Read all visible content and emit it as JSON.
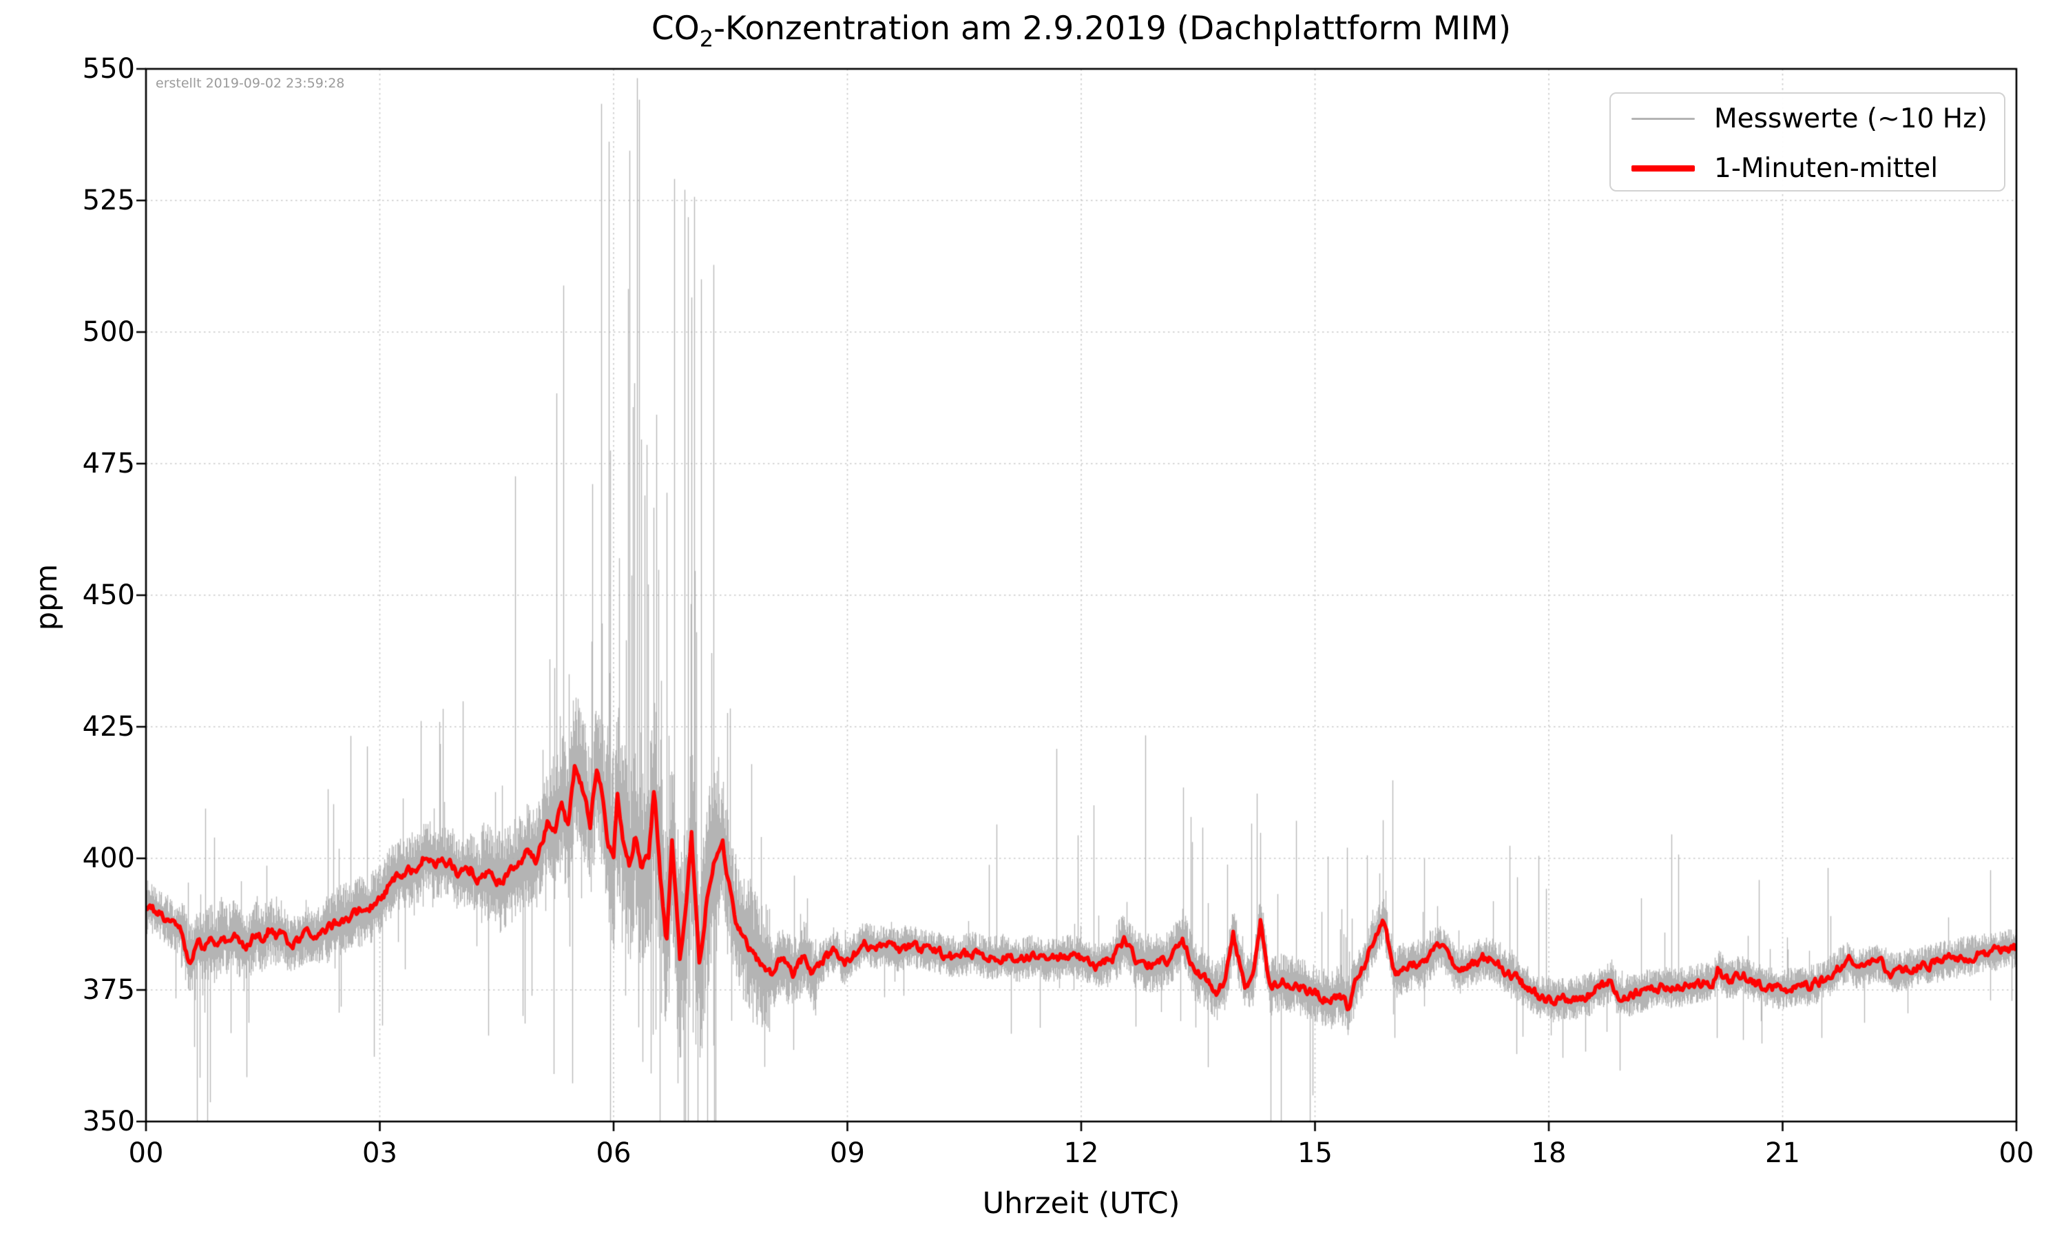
{
  "title": {
    "pre": "CO",
    "sub": "2",
    "post": "-Konzentration am 2.9.2019 (Dachplattform MIM)"
  },
  "created_stamp": "erstellt 2019-09-02 23:59:28",
  "colors": {
    "mean_line": "#ff0000",
    "raw_line": "#b4b4b4",
    "grid": "#c9c9c9",
    "spine": "#000000",
    "stamp": "#9b9b9b"
  },
  "legend": {
    "items": [
      {
        "label": "Messwerte (~10 Hz)",
        "color": "#b4b4b4",
        "thickness": 3
      },
      {
        "label": "1-Minuten-mittel",
        "color": "#ff0000",
        "thickness": 9
      }
    ]
  },
  "chart_data": {
    "type": "line",
    "xlabel": "Uhrzeit (UTC)",
    "ylabel": "ppm",
    "xlim": [
      0,
      24
    ],
    "ylim": [
      350,
      550
    ],
    "x_ticks": [
      0,
      3,
      6,
      9,
      12,
      15,
      18,
      21,
      24
    ],
    "x_tick_labels": [
      "00",
      "03",
      "06",
      "09",
      "12",
      "15",
      "18",
      "21",
      "00"
    ],
    "y_ticks": [
      350,
      375,
      400,
      425,
      450,
      475,
      500,
      525,
      550
    ],
    "y_tick_labels": [
      "350",
      "375",
      "400",
      "425",
      "450",
      "475",
      "500",
      "525",
      "550"
    ],
    "grid": "dotted",
    "legend_position": "upper right",
    "noise_seed": 20190902,
    "series": [
      {
        "name": "1-Minuten-mittel",
        "color": "#ff0000",
        "points": [
          [
            0.0,
            391.0
          ],
          [
            0.08,
            390.5
          ],
          [
            0.17,
            389.5
          ],
          [
            0.25,
            388.5
          ],
          [
            0.33,
            387.5
          ],
          [
            0.38,
            386.5
          ],
          [
            0.42,
            387.0
          ],
          [
            0.47,
            385.5
          ],
          [
            0.52,
            382.0
          ],
          [
            0.57,
            380.8
          ],
          [
            0.63,
            383.5
          ],
          [
            0.67,
            384.0
          ],
          [
            0.72,
            382.5
          ],
          [
            0.78,
            383.5
          ],
          [
            0.83,
            384.5
          ],
          [
            0.88,
            383.0
          ],
          [
            0.95,
            385.0
          ],
          [
            1.0,
            385.5
          ],
          [
            1.05,
            384.0
          ],
          [
            1.13,
            386.0
          ],
          [
            1.22,
            383.5
          ],
          [
            1.28,
            383.0
          ],
          [
            1.38,
            385.5
          ],
          [
            1.42,
            386.0
          ],
          [
            1.5,
            384.5
          ],
          [
            1.58,
            386.5
          ],
          [
            1.67,
            385.0
          ],
          [
            1.72,
            386.0
          ],
          [
            1.82,
            384.0
          ],
          [
            1.9,
            384.0
          ],
          [
            2.0,
            385.0
          ],
          [
            2.08,
            385.5
          ],
          [
            2.17,
            384.5
          ],
          [
            2.25,
            386.0
          ],
          [
            2.35,
            387.0
          ],
          [
            2.5,
            388.0
          ],
          [
            2.63,
            389.0
          ],
          [
            2.75,
            390.0
          ],
          [
            2.85,
            390.5
          ],
          [
            2.95,
            391.5
          ],
          [
            3.05,
            393.0
          ],
          [
            3.13,
            395.5
          ],
          [
            3.2,
            396.5
          ],
          [
            3.35,
            397.5
          ],
          [
            3.5,
            398.0
          ],
          [
            3.6,
            401.0
          ],
          [
            3.7,
            399.0
          ],
          [
            3.8,
            399.0
          ],
          [
            3.9,
            399.5
          ],
          [
            4.0,
            397.0
          ],
          [
            4.1,
            397.5
          ],
          [
            4.17,
            398.0
          ],
          [
            4.25,
            396.0
          ],
          [
            4.33,
            397.0
          ],
          [
            4.42,
            397.5
          ],
          [
            4.55,
            395.2
          ],
          [
            4.66,
            397.0
          ],
          [
            4.75,
            398.2
          ],
          [
            4.87,
            401.0
          ],
          [
            5.0,
            399.5
          ],
          [
            5.08,
            403.0
          ],
          [
            5.15,
            407.0
          ],
          [
            5.25,
            405.0
          ],
          [
            5.33,
            410.5
          ],
          [
            5.42,
            406.0
          ],
          [
            5.5,
            417.5
          ],
          [
            5.57,
            414.5
          ],
          [
            5.63,
            412.0
          ],
          [
            5.7,
            406.5
          ],
          [
            5.78,
            417.0
          ],
          [
            5.85,
            413.0
          ],
          [
            5.93,
            402.0
          ],
          [
            6.0,
            400.5
          ],
          [
            6.05,
            412.5
          ],
          [
            6.12,
            404.0
          ],
          [
            6.2,
            398.5
          ],
          [
            6.28,
            404.5
          ],
          [
            6.35,
            398.5
          ],
          [
            6.45,
            400.0
          ],
          [
            6.52,
            413.0
          ],
          [
            6.6,
            396.0
          ],
          [
            6.68,
            384.0
          ],
          [
            6.75,
            404.0
          ],
          [
            6.85,
            381.0
          ],
          [
            6.93,
            390.0
          ],
          [
            7.0,
            404.0
          ],
          [
            7.1,
            379.0
          ],
          [
            7.2,
            393.0
          ],
          [
            7.28,
            398.5
          ],
          [
            7.4,
            402.5
          ],
          [
            7.48,
            395.0
          ],
          [
            7.58,
            387.0
          ],
          [
            7.75,
            383.0
          ],
          [
            7.9,
            379.5
          ],
          [
            8.05,
            378.0
          ],
          [
            8.15,
            381.0
          ],
          [
            8.3,
            378.0
          ],
          [
            8.45,
            381.5
          ],
          [
            8.55,
            377.5
          ],
          [
            8.7,
            381.0
          ],
          [
            8.85,
            382.5
          ],
          [
            8.95,
            380.0
          ],
          [
            9.1,
            382.0
          ],
          [
            9.2,
            384.0
          ],
          [
            9.35,
            383.0
          ],
          [
            9.5,
            383.5
          ],
          [
            9.65,
            382.5
          ],
          [
            9.8,
            383.5
          ],
          [
            10.0,
            382.5
          ],
          [
            10.2,
            382.0
          ],
          [
            10.4,
            381.0
          ],
          [
            10.6,
            382.0
          ],
          [
            10.8,
            381.0
          ],
          [
            11.0,
            381.5
          ],
          [
            11.2,
            380.5
          ],
          [
            11.4,
            381.5
          ],
          [
            11.6,
            380.5
          ],
          [
            11.8,
            381.5
          ],
          [
            12.0,
            380.8
          ],
          [
            12.2,
            379.5
          ],
          [
            12.4,
            380.8
          ],
          [
            12.55,
            384.5
          ],
          [
            12.7,
            380.5
          ],
          [
            12.9,
            380.0
          ],
          [
            13.1,
            380.5
          ],
          [
            13.3,
            385.0
          ],
          [
            13.45,
            378.5
          ],
          [
            13.6,
            377.0
          ],
          [
            13.73,
            374.6
          ],
          [
            13.85,
            377.0
          ],
          [
            13.95,
            385.5
          ],
          [
            14.1,
            376.0
          ],
          [
            14.2,
            377.5
          ],
          [
            14.3,
            388.0
          ],
          [
            14.42,
            375.5
          ],
          [
            14.6,
            376.5
          ],
          [
            14.75,
            376.0
          ],
          [
            14.9,
            375.0
          ],
          [
            15.05,
            374.0
          ],
          [
            15.2,
            373.0
          ],
          [
            15.32,
            374.5
          ],
          [
            15.42,
            371.7
          ],
          [
            15.55,
            378.0
          ],
          [
            15.65,
            380.5
          ],
          [
            15.73,
            384.0
          ],
          [
            15.82,
            386.5
          ],
          [
            15.88,
            388.5
          ],
          [
            15.95,
            383.0
          ],
          [
            16.02,
            378.0
          ],
          [
            16.12,
            379.0
          ],
          [
            16.25,
            379.5
          ],
          [
            16.4,
            380.0
          ],
          [
            16.5,
            382.0
          ],
          [
            16.6,
            383.5
          ],
          [
            16.7,
            381.5
          ],
          [
            16.8,
            379.0
          ],
          [
            16.95,
            379.5
          ],
          [
            17.05,
            380.0
          ],
          [
            17.15,
            381.0
          ],
          [
            17.3,
            380.5
          ],
          [
            17.45,
            378.5
          ],
          [
            17.6,
            377.0
          ],
          [
            17.75,
            375.0
          ],
          [
            17.9,
            373.5
          ],
          [
            18.05,
            373.0
          ],
          [
            18.2,
            373.2
          ],
          [
            18.35,
            373.5
          ],
          [
            18.5,
            374.0
          ],
          [
            18.65,
            375.5
          ],
          [
            18.8,
            376.8
          ],
          [
            18.9,
            373.7
          ],
          [
            19.05,
            374.1
          ],
          [
            19.2,
            374.8
          ],
          [
            19.35,
            375.2
          ],
          [
            19.5,
            375.5
          ],
          [
            19.65,
            375.2
          ],
          [
            19.8,
            375.8
          ],
          [
            19.95,
            376.2
          ],
          [
            20.1,
            376.5
          ],
          [
            20.17,
            379.0
          ],
          [
            20.3,
            376.5
          ],
          [
            20.42,
            377.5
          ],
          [
            20.5,
            378.0
          ],
          [
            20.6,
            376.5
          ],
          [
            20.75,
            375.8
          ],
          [
            20.9,
            375.3
          ],
          [
            21.0,
            375.2
          ],
          [
            21.15,
            375.4
          ],
          [
            21.3,
            375.6
          ],
          [
            21.45,
            376.3
          ],
          [
            21.6,
            377.5
          ],
          [
            21.75,
            379.5
          ],
          [
            21.85,
            380.5
          ],
          [
            21.95,
            378.8
          ],
          [
            22.1,
            379.5
          ],
          [
            22.25,
            380.4
          ],
          [
            22.4,
            378.2
          ],
          [
            22.55,
            378.8
          ],
          [
            22.7,
            379.2
          ],
          [
            22.85,
            379.8
          ],
          [
            23.0,
            380.3
          ],
          [
            23.15,
            380.8
          ],
          [
            23.3,
            381.2
          ],
          [
            23.45,
            381.6
          ],
          [
            23.6,
            382.0
          ],
          [
            23.75,
            382.4
          ],
          [
            23.9,
            382.8
          ],
          [
            24.0,
            383.2
          ]
        ]
      },
      {
        "name": "Messwerte (~10 Hz)",
        "color": "#b4b4b4",
        "style": "noise-band-around-mean",
        "envelope_segments": [
          [
            0.0,
            0.45,
            3.5,
            0.02,
            10,
            0.03,
            14
          ],
          [
            0.45,
            1.6,
            5.0,
            0.06,
            27,
            0.1,
            33
          ],
          [
            1.6,
            2.3,
            4.0,
            0.03,
            10,
            0.04,
            12
          ],
          [
            2.3,
            4.3,
            5.0,
            0.05,
            30,
            0.05,
            25
          ],
          [
            4.3,
            5.2,
            7.0,
            0.09,
            85,
            0.08,
            32
          ],
          [
            5.2,
            5.9,
            10.0,
            0.16,
            125,
            0.1,
            52
          ],
          [
            5.9,
            7.35,
            14.0,
            0.3,
            160,
            0.24,
            52
          ],
          [
            7.35,
            8.0,
            9.0,
            0.12,
            80,
            0.12,
            32
          ],
          [
            8.0,
            8.6,
            5.0,
            0.06,
            26,
            0.05,
            18
          ],
          [
            8.6,
            11.0,
            3.0,
            0.05,
            28,
            0.02,
            12
          ],
          [
            11.0,
            12.45,
            3.0,
            0.05,
            44,
            0.02,
            13
          ],
          [
            12.45,
            14.1,
            4.0,
            0.08,
            42,
            0.04,
            26
          ],
          [
            14.1,
            15.6,
            4.0,
            0.09,
            44,
            0.04,
            25
          ],
          [
            15.6,
            16.6,
            3.5,
            0.08,
            50,
            0.04,
            13
          ],
          [
            16.6,
            18.6,
            3.0,
            0.06,
            34,
            0.04,
            12
          ],
          [
            18.6,
            19.4,
            3.0,
            0.06,
            42,
            0.04,
            12
          ],
          [
            19.4,
            21.0,
            2.8,
            0.05,
            30,
            0.03,
            10
          ],
          [
            21.0,
            22.6,
            2.8,
            0.05,
            23,
            0.03,
            10
          ],
          [
            22.6,
            24.0,
            2.8,
            0.04,
            17,
            0.03,
            9
          ]
        ]
      }
    ]
  }
}
